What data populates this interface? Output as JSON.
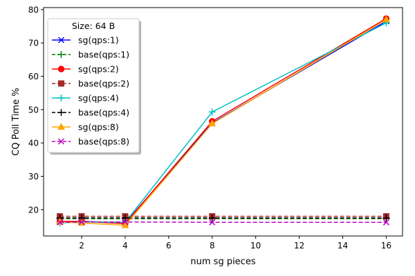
{
  "chart_data": {
    "type": "line",
    "title": "",
    "xlabel": "num sg pieces",
    "ylabel": "CQ Poll Time %",
    "x": [
      1,
      2,
      4,
      8,
      16
    ],
    "xlim": [
      0.25,
      16.75
    ],
    "ylim": [
      12.1,
      80.6
    ],
    "xticks": [
      2,
      4,
      6,
      8,
      10,
      12,
      14,
      16
    ],
    "yticks": [
      20,
      30,
      40,
      50,
      60,
      70,
      80
    ],
    "grid": false,
    "legend": {
      "title": "Size: 64 B",
      "placement": "top-left"
    },
    "series": [
      {
        "name": "sg(qps:1)",
        "values": [
          16.5,
          16.5,
          16.0,
          46.0,
          76.5
        ],
        "color": "#0000ff",
        "dash": "solid",
        "marker": "x"
      },
      {
        "name": "base(qps:1)",
        "values": [
          17.3,
          17.3,
          17.3,
          17.3,
          17.3
        ],
        "color": "#008000",
        "dash": "dashed",
        "marker": "plus"
      },
      {
        "name": "sg(qps:2)",
        "values": [
          16.5,
          16.5,
          15.8,
          46.5,
          77.3
        ],
        "color": "#ff0000",
        "dash": "solid",
        "marker": "circle"
      },
      {
        "name": "base(qps:2)",
        "values": [
          18.0,
          18.0,
          18.0,
          18.0,
          18.0
        ],
        "color": "#a52a2a",
        "dash": "dashed",
        "marker": "square"
      },
      {
        "name": "sg(qps:4)",
        "values": [
          16.0,
          16.3,
          16.2,
          49.3,
          76.0
        ],
        "color": "#00bfbf",
        "dash": "solid",
        "marker": "plus"
      },
      {
        "name": "base(qps:4)",
        "values": [
          17.5,
          17.5,
          17.5,
          17.5,
          17.5
        ],
        "color": "#000000",
        "dash": "dashed",
        "marker": "plus"
      },
      {
        "name": "sg(qps:8)",
        "values": [
          16.3,
          16.0,
          15.3,
          45.8,
          77.0
        ],
        "color": "#ffa500",
        "dash": "solid",
        "marker": "triangle"
      },
      {
        "name": "base(qps:8)",
        "values": [
          16.2,
          16.3,
          16.3,
          16.2,
          16.2
        ],
        "color": "#bf00bf",
        "dash": "dashed",
        "marker": "x"
      }
    ]
  }
}
